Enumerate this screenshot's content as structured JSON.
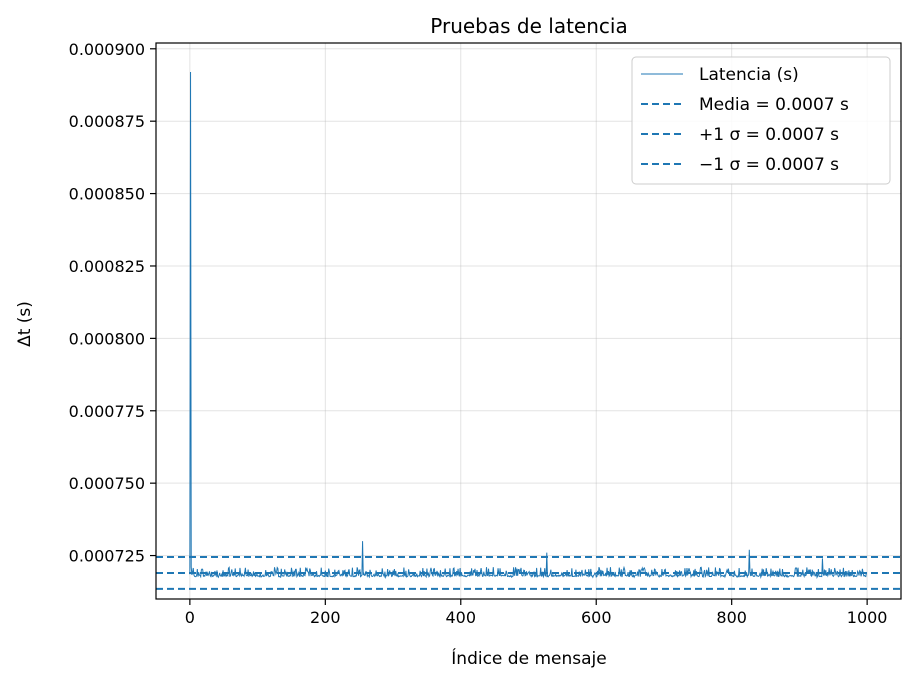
{
  "chart_data": {
    "type": "line",
    "title": "Pruebas de latencia",
    "xlabel": "Índice de mensaje",
    "ylabel": "Δt (s)",
    "xlim": [
      -50,
      1050
    ],
    "ylim": [
      0.00071,
      0.000902
    ],
    "x_ticks": [
      0,
      200,
      400,
      600,
      800,
      1000
    ],
    "x_tick_labels": [
      "0",
      "200",
      "400",
      "600",
      "800",
      "1000"
    ],
    "y_ticks": [
      0.000725,
      0.00075,
      0.000775,
      0.0008,
      0.000825,
      0.00085,
      0.000875,
      0.0009
    ],
    "y_tick_labels": [
      "0.000725",
      "0.000750",
      "0.000775",
      "0.000800",
      "0.000825",
      "0.000850",
      "0.000875",
      "0.000900"
    ],
    "grid": true,
    "legend_position": "top-right",
    "series": [
      {
        "name": "Latencia (s)",
        "color": "#1f77b4",
        "style": "solid",
        "n_points": 1000,
        "x_start": 0,
        "baseline": 0.000718,
        "spikes": [
          {
            "x": 1,
            "y": 0.000892
          },
          {
            "x": 2,
            "y": 0.000721
          },
          {
            "x": 255,
            "y": 0.00073
          },
          {
            "x": 527,
            "y": 0.000726
          },
          {
            "x": 826,
            "y": 0.000727
          },
          {
            "x": 934,
            "y": 0.000724
          }
        ]
      }
    ],
    "reference_lines": [
      {
        "name": "Media = 0.0007 s",
        "y": 0.000719,
        "color": "#1f77b4",
        "style": "dashed"
      },
      {
        "name": "+1 σ = 0.0007 s",
        "y": 0.0007245,
        "color": "#1f77b4",
        "style": "dashed"
      },
      {
        "name": "−1 σ = 0.0007 s",
        "y": 0.0007135,
        "color": "#1f77b4",
        "style": "dashed"
      }
    ]
  }
}
